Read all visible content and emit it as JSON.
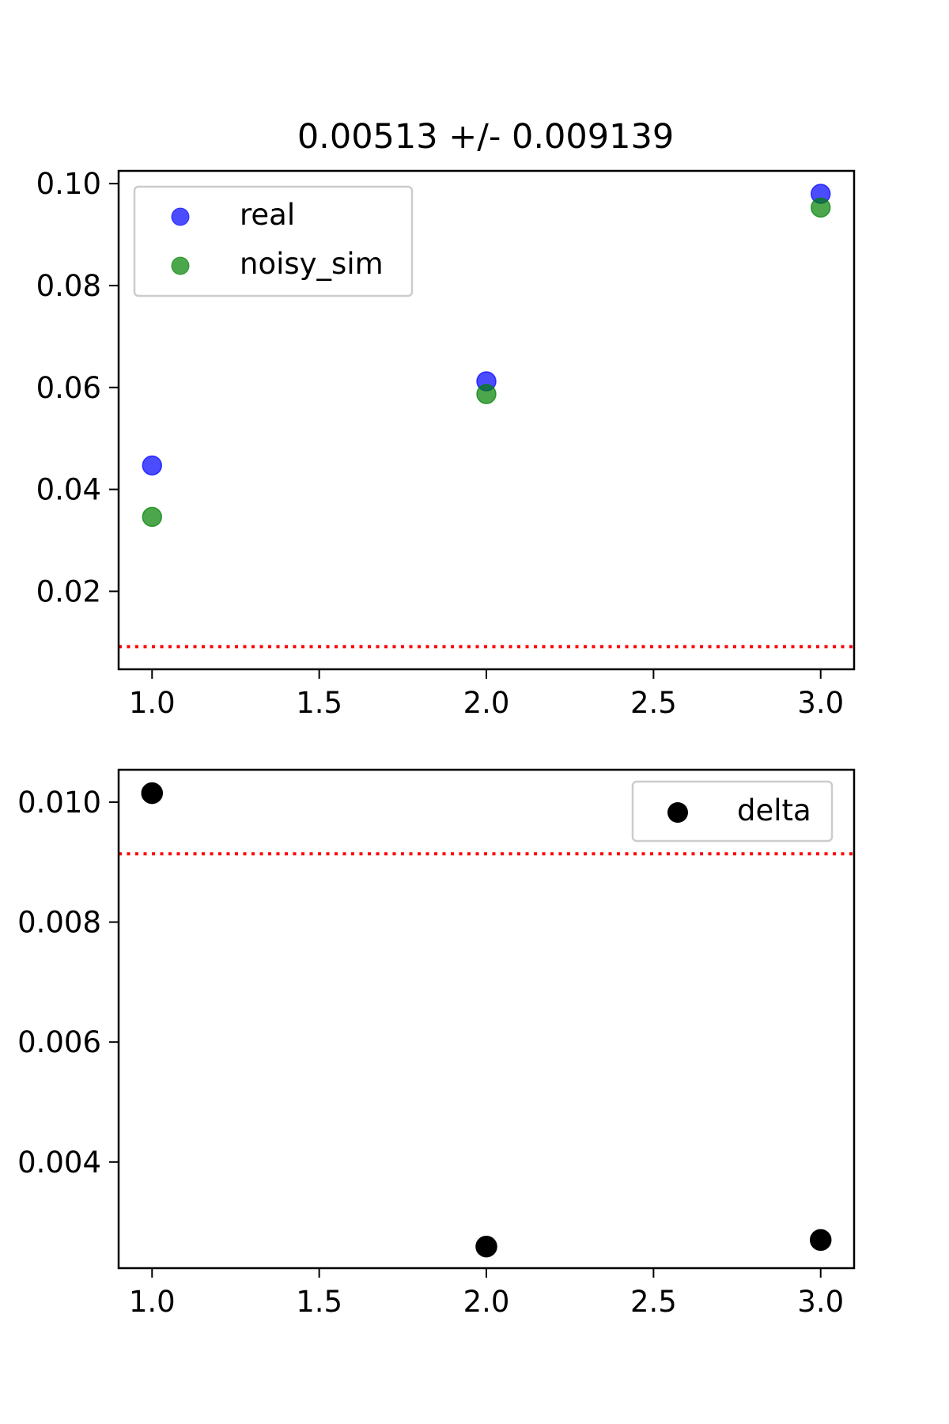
{
  "chart_data": [
    {
      "type": "scatter",
      "title": "0.00513 +/- 0.009139",
      "xlabel": "",
      "ylabel": "",
      "xlim": [
        0.9,
        3.1
      ],
      "ylim": [
        0.0047,
        0.1025
      ],
      "xticks": [
        1.0,
        1.5,
        2.0,
        2.5,
        3.0
      ],
      "xtick_labels": [
        "1.0",
        "1.5",
        "2.0",
        "2.5",
        "3.0"
      ],
      "yticks": [
        0.02,
        0.04,
        0.06,
        0.08,
        0.1
      ],
      "ytick_labels": [
        "0.02",
        "0.04",
        "0.06",
        "0.08",
        "0.10"
      ],
      "legend_position": "upper-left",
      "threshold": {
        "y": 0.009139,
        "color": "#ff0000",
        "style": "dotted"
      },
      "series": [
        {
          "name": "real",
          "color": "#0000ff",
          "x": [
            1,
            2,
            3
          ],
          "y": [
            0.0447,
            0.0612,
            0.098
          ]
        },
        {
          "name": "noisy_sim",
          "color": "#008000",
          "x": [
            1,
            2,
            3
          ],
          "y": [
            0.0346,
            0.0587,
            0.0953
          ]
        }
      ]
    },
    {
      "type": "scatter",
      "title": "",
      "xlabel": "",
      "ylabel": "",
      "xlim": [
        0.9,
        3.1
      ],
      "ylim": [
        0.00223,
        0.01054
      ],
      "xticks": [
        1.0,
        1.5,
        2.0,
        2.5,
        3.0
      ],
      "xtick_labels": [
        "1.0",
        "1.5",
        "2.0",
        "2.5",
        "3.0"
      ],
      "yticks": [
        0.004,
        0.006,
        0.008,
        0.01
      ],
      "ytick_labels": [
        "0.004",
        "0.006",
        "0.008",
        "0.010"
      ],
      "legend_position": "upper-right",
      "threshold": {
        "y": 0.009139,
        "color": "#ff0000",
        "style": "dotted"
      },
      "series": [
        {
          "name": "delta",
          "color": "#000000",
          "x": [
            1,
            2,
            3
          ],
          "y": [
            0.01015,
            0.00259,
            0.0027
          ]
        }
      ]
    }
  ]
}
